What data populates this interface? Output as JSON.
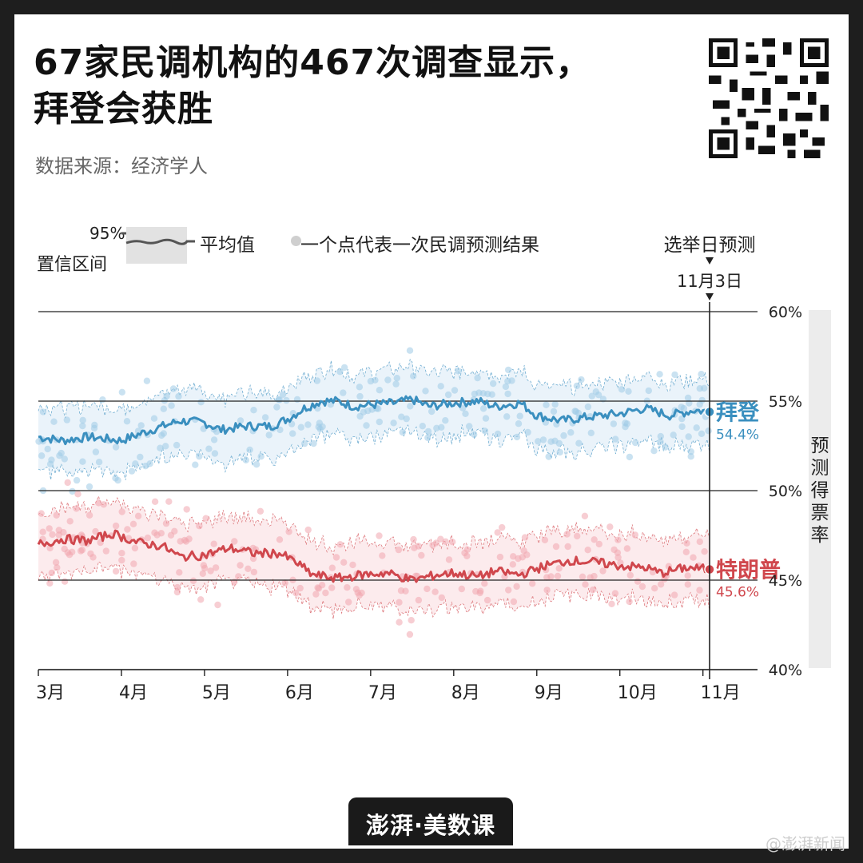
{
  "header": {
    "title_line1": "67家民调机构的467次调查显示，",
    "title_line2": "拜登会获胜",
    "source": "数据来源：经济学人"
  },
  "legend": {
    "ci_pct": "95%",
    "ci_label": "置信区间",
    "avg_label": "平均值",
    "dot_label": "一个点代表一次民调预测结果"
  },
  "annotation": {
    "election_label": "选举日预测",
    "election_date": "11月3日"
  },
  "footer": {
    "brand": "澎湃·美数课",
    "weibo": "@澎湃新闻"
  },
  "chart_data": {
    "type": "line",
    "title": "67家民调机构的467次调查显示，拜登会获胜",
    "ylabel": "预测得票率",
    "ylim": [
      40,
      60
    ],
    "y_ticks": [
      "60%",
      "55%",
      "50%",
      "45%",
      "40%"
    ],
    "y_tick_values": [
      60,
      55,
      50,
      45,
      40
    ],
    "x_ticks": [
      "3月",
      "4月",
      "5月",
      "6月",
      "7月",
      "8月",
      "9月",
      "10月",
      "11月"
    ],
    "x_tick_months": [
      3,
      4,
      5,
      6,
      7,
      8,
      9,
      10,
      11
    ],
    "xlim_months": [
      3,
      11.08
    ],
    "election_month": 11.08,
    "ci_width": 3.6,
    "series": [
      {
        "name": "拜登",
        "color": "#3a8fbf",
        "band_color": "#e6f1f9",
        "dot_color": "#9fcbe6",
        "end_value": "54.4%",
        "avg": [
          [
            3.0,
            53.0
          ],
          [
            3.3,
            52.8
          ],
          [
            3.6,
            53.0
          ],
          [
            4.0,
            52.8
          ],
          [
            4.3,
            53.3
          ],
          [
            4.7,
            53.9
          ],
          [
            5.0,
            53.8
          ],
          [
            5.2,
            53.4
          ],
          [
            5.5,
            53.6
          ],
          [
            5.8,
            53.6
          ],
          [
            6.0,
            54.0
          ],
          [
            6.2,
            54.6
          ],
          [
            6.4,
            55.0
          ],
          [
            6.6,
            55.0
          ],
          [
            6.8,
            54.7
          ],
          [
            7.0,
            54.8
          ],
          [
            7.3,
            54.9
          ],
          [
            7.5,
            55.1
          ],
          [
            7.7,
            54.7
          ],
          [
            8.0,
            54.9
          ],
          [
            8.3,
            55.0
          ],
          [
            8.5,
            54.7
          ],
          [
            8.8,
            54.9
          ],
          [
            9.0,
            54.2
          ],
          [
            9.3,
            53.9
          ],
          [
            9.6,
            54.1
          ],
          [
            10.0,
            54.3
          ],
          [
            10.3,
            54.6
          ],
          [
            10.6,
            54.2
          ],
          [
            10.9,
            54.5
          ],
          [
            11.08,
            54.4
          ]
        ]
      },
      {
        "name": "特朗普",
        "color": "#d0474d",
        "band_color": "#fbe8ea",
        "dot_color": "#f0a6ae",
        "end_value": "45.6%",
        "avg": [
          [
            3.0,
            47.0
          ],
          [
            3.3,
            47.3
          ],
          [
            3.6,
            47.2
          ],
          [
            3.9,
            47.6
          ],
          [
            4.2,
            47.1
          ],
          [
            4.5,
            46.9
          ],
          [
            4.7,
            46.3
          ],
          [
            5.0,
            46.4
          ],
          [
            5.3,
            46.8
          ],
          [
            5.6,
            46.5
          ],
          [
            5.9,
            46.5
          ],
          [
            6.1,
            46.0
          ],
          [
            6.3,
            45.3
          ],
          [
            6.6,
            45.1
          ],
          [
            6.9,
            45.3
          ],
          [
            7.2,
            45.4
          ],
          [
            7.5,
            45.0
          ],
          [
            7.8,
            45.3
          ],
          [
            8.0,
            45.4
          ],
          [
            8.3,
            45.2
          ],
          [
            8.5,
            45.5
          ],
          [
            8.8,
            45.3
          ],
          [
            9.1,
            45.8
          ],
          [
            9.4,
            46.1
          ],
          [
            9.7,
            46.0
          ],
          [
            10.0,
            45.8
          ],
          [
            10.3,
            45.7
          ],
          [
            10.5,
            45.4
          ],
          [
            10.8,
            45.7
          ],
          [
            11.08,
            45.6
          ]
        ]
      }
    ]
  }
}
